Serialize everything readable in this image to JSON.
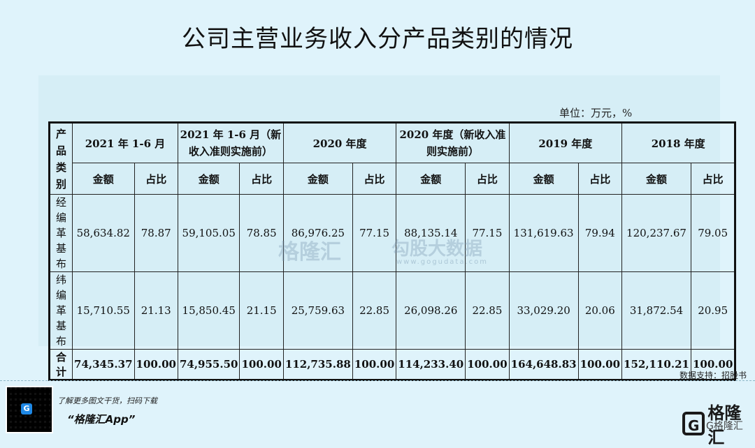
{
  "title": "公司主营业务收入分产品类别的情况",
  "unit": "单位：万元，%",
  "table": {
    "corner": "产品类别",
    "periods": [
      "2021 年 1-6 月",
      "2021 年 1-6 月（新收入准则实施前）",
      "2020 年度",
      "2020 年度（新收入准则实施前）",
      "2019 年度",
      "2018 年度"
    ],
    "amount_label": "金额",
    "ratio_label": "占比",
    "rows": [
      {
        "category": "经编革基布",
        "cells": [
          "58,634.82",
          "78.87",
          "59,105.05",
          "78.85",
          "86,976.25",
          "77.15",
          "88,135.14",
          "77.15",
          "131,619.63",
          "79.94",
          "120,237.67",
          "79.05"
        ]
      },
      {
        "category": "纬编革基布",
        "cells": [
          "15,710.55",
          "21.13",
          "15,850.45",
          "21.15",
          "25,759.63",
          "22.85",
          "26,098.26",
          "22.85",
          "33,029.20",
          "20.06",
          "31,872.54",
          "20.95"
        ]
      }
    ],
    "total": {
      "category": "合计",
      "cells": [
        "74,345.37",
        "100.00",
        "74,955.50",
        "100.00",
        "112,735.88",
        "100.00",
        "114,233.40",
        "100.00",
        "164,648.83",
        "100.00",
        "152,110.21",
        "100.00"
      ]
    }
  },
  "watermark": {
    "brand": "格隆汇",
    "brand2": "勾股大数据",
    "sub": "www.gogudata.com"
  },
  "source": "数据支持：招股书",
  "promo": {
    "line1": "了解更多图文干货，扫码下载",
    "line2": "“格隆汇App”"
  },
  "logo": {
    "mark": "G",
    "text": "格隆汇",
    "sub": "G格隆汇"
  }
}
